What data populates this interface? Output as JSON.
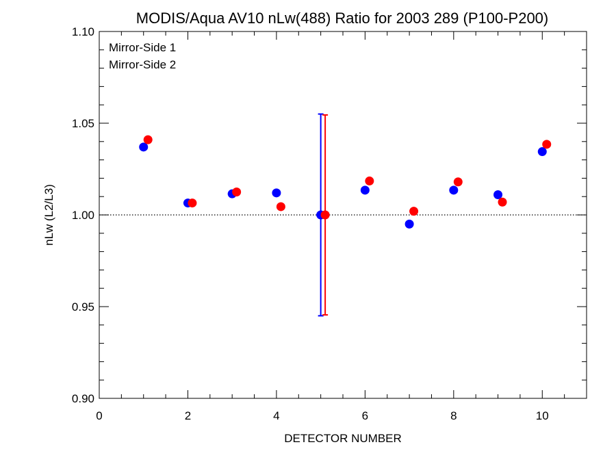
{
  "chart_data": {
    "type": "scatter",
    "title": "MODIS/Aqua AV10 nLw(488) Ratio for 2003 289 (P100-P200)",
    "xlabel": "DETECTOR NUMBER",
    "ylabel": "nLw (L2/L3)",
    "xlim": [
      0,
      11
    ],
    "ylim": [
      0.9,
      1.1
    ],
    "x_ticks": [
      0,
      2,
      4,
      6,
      8,
      10
    ],
    "x_tick_labels": [
      "0",
      "2",
      "4",
      "6",
      "8",
      "10"
    ],
    "y_ticks": [
      0.9,
      0.95,
      1.0,
      1.05,
      1.1
    ],
    "y_tick_labels": [
      "0.90",
      "0.95",
      "1.00",
      "1.05",
      "1.10"
    ],
    "reference_line": {
      "y": 1.0,
      "style": "dotted"
    },
    "legend": {
      "placement": "top-left"
    },
    "grid": false,
    "series": [
      {
        "name": "Mirror-Side 1",
        "color": "#0000ff",
        "x": [
          1,
          2,
          3,
          4,
          5,
          6,
          7,
          8,
          9,
          10
        ],
        "y": [
          1.037,
          1.0065,
          1.0115,
          1.012,
          1.0,
          1.0135,
          0.995,
          1.0135,
          1.011,
          1.0345
        ],
        "error_bar": {
          "x": 5,
          "low": 0.945,
          "high": 1.055
        }
      },
      {
        "name": "Mirror-Side 2",
        "color": "#ff0000",
        "x": [
          1.1,
          2.1,
          3.1,
          4.1,
          5.1,
          6.1,
          7.1,
          8.1,
          9.1,
          10.1
        ],
        "y": [
          1.041,
          1.0065,
          1.0125,
          1.0045,
          1.0,
          1.0185,
          1.002,
          1.018,
          1.007,
          1.0385
        ],
        "error_bar": {
          "x": 5.1,
          "low": 0.9455,
          "high": 1.0545
        }
      }
    ]
  }
}
